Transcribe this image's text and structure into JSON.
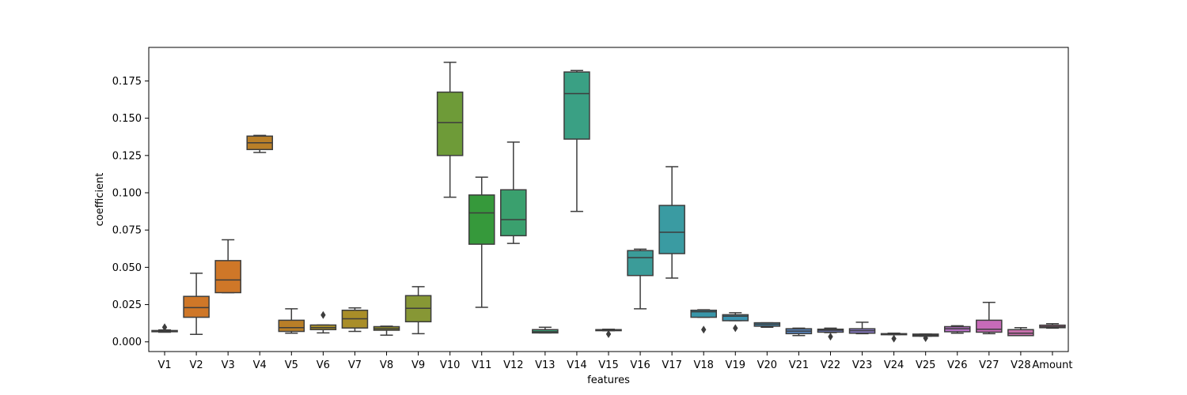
{
  "chart_data": {
    "type": "box",
    "xlabel": "features",
    "ylabel": "coefficient",
    "ylim": [
      -0.0065,
      0.1975
    ],
    "yticks": [
      0.0,
      0.025,
      0.05,
      0.075,
      0.1,
      0.125,
      0.15,
      0.175
    ],
    "ytick_labels": [
      "0.000",
      "0.025",
      "0.050",
      "0.075",
      "0.100",
      "0.125",
      "0.150",
      "0.175"
    ],
    "grid": false,
    "categories": [
      "V1",
      "V2",
      "V3",
      "V4",
      "V5",
      "V6",
      "V7",
      "V8",
      "V9",
      "V10",
      "V11",
      "V12",
      "V13",
      "V14",
      "V15",
      "V16",
      "V17",
      "V18",
      "V19",
      "V20",
      "V21",
      "V22",
      "V23",
      "V24",
      "V25",
      "V26",
      "V27",
      "V28",
      "Amount"
    ],
    "boxes": [
      {
        "whislo": 0.0065,
        "q1": 0.0068,
        "med": 0.0071,
        "q3": 0.0076,
        "whishi": 0.008,
        "fliers": [
          0.0098
        ],
        "color": "#3274a1"
      },
      {
        "whislo": 0.005,
        "q1": 0.0165,
        "med": 0.023,
        "q3": 0.0305,
        "whishi": 0.046,
        "fliers": [],
        "color": "#e1812c"
      },
      {
        "whislo": 0.033,
        "q1": 0.033,
        "med": 0.0415,
        "q3": 0.0545,
        "whishi": 0.0685,
        "fliers": [],
        "color": "#e1812c"
      },
      {
        "whislo": 0.127,
        "q1": 0.129,
        "med": 0.1335,
        "q3": 0.138,
        "whishi": 0.1385,
        "fliers": [],
        "color": "#c98a2c"
      },
      {
        "whislo": 0.0058,
        "q1": 0.007,
        "med": 0.0095,
        "q3": 0.0145,
        "whishi": 0.0222,
        "fliers": [],
        "color": "#c98a2c"
      },
      {
        "whislo": 0.006,
        "q1": 0.0082,
        "med": 0.0095,
        "q3": 0.0113,
        "whishi": 0.0113,
        "fliers": [
          0.018
        ],
        "color": "#b89a2c"
      },
      {
        "whislo": 0.007,
        "q1": 0.0093,
        "med": 0.0155,
        "q3": 0.0212,
        "whishi": 0.0228,
        "fliers": [],
        "color": "#b89a2c"
      },
      {
        "whislo": 0.0045,
        "q1": 0.0078,
        "med": 0.0088,
        "q3": 0.0102,
        "whishi": 0.0105,
        "fliers": [],
        "color": "#a4a02c"
      },
      {
        "whislo": 0.0055,
        "q1": 0.0135,
        "med": 0.0225,
        "q3": 0.031,
        "whishi": 0.037,
        "fliers": [],
        "color": "#93a43a"
      },
      {
        "whislo": 0.097,
        "q1": 0.125,
        "med": 0.147,
        "q3": 0.1675,
        "whishi": 0.1875,
        "fliers": [],
        "color": "#78a83d"
      },
      {
        "whislo": 0.0232,
        "q1": 0.0655,
        "med": 0.0865,
        "q3": 0.0985,
        "whishi": 0.1105,
        "fliers": [],
        "color": "#3ba640"
      },
      {
        "whislo": 0.066,
        "q1": 0.0712,
        "med": 0.082,
        "q3": 0.102,
        "whishi": 0.134,
        "fliers": [],
        "color": "#3fae78"
      },
      {
        "whislo": 0.006,
        "q1": 0.006,
        "med": 0.0068,
        "q3": 0.0082,
        "whishi": 0.0098,
        "fliers": [],
        "color": "#3fae80"
      },
      {
        "whislo": 0.0875,
        "q1": 0.136,
        "med": 0.1665,
        "q3": 0.181,
        "whishi": 0.182,
        "fliers": [],
        "color": "#3fae8f"
      },
      {
        "whislo": 0.0075,
        "q1": 0.0075,
        "med": 0.0078,
        "q3": 0.0082,
        "whishi": 0.0085,
        "fliers": [
          0.0052
        ],
        "color": "#3fae9a"
      },
      {
        "whislo": 0.0222,
        "q1": 0.0445,
        "med": 0.0565,
        "q3": 0.0612,
        "whishi": 0.0622,
        "fliers": [],
        "color": "#40aaa6"
      },
      {
        "whislo": 0.0428,
        "q1": 0.0592,
        "med": 0.0735,
        "q3": 0.0915,
        "whishi": 0.1175,
        "fliers": [],
        "color": "#3fa9b0"
      },
      {
        "whislo": 0.0165,
        "q1": 0.0165,
        "med": 0.0202,
        "q3": 0.0212,
        "whishi": 0.0215,
        "fliers": [
          0.0082
        ],
        "color": "#3ea3b8"
      },
      {
        "whislo": 0.0142,
        "q1": 0.0142,
        "med": 0.0172,
        "q3": 0.0182,
        "whishi": 0.0195,
        "fliers": [
          0.0092
        ],
        "color": "#3f9fbe"
      },
      {
        "whislo": 0.0098,
        "q1": 0.0105,
        "med": 0.0118,
        "q3": 0.0128,
        "whishi": 0.0128,
        "fliers": [],
        "color": "#4a9bc8"
      },
      {
        "whislo": 0.0042,
        "q1": 0.0055,
        "med": 0.0072,
        "q3": 0.0088,
        "whishi": 0.0092,
        "fliers": [],
        "color": "#5f8fce"
      },
      {
        "whislo": 0.0062,
        "q1": 0.0065,
        "med": 0.0078,
        "q3": 0.0085,
        "whishi": 0.0092,
        "fliers": [
          0.0035
        ],
        "color": "#7f8ad6"
      },
      {
        "whislo": 0.0055,
        "q1": 0.0058,
        "med": 0.0075,
        "q3": 0.0088,
        "whishi": 0.0132,
        "fliers": [],
        "color": "#9585d8"
      },
      {
        "whislo": 0.0048,
        "q1": 0.0048,
        "med": 0.0052,
        "q3": 0.0055,
        "whishi": 0.0058,
        "fliers": [
          0.0022
        ],
        "color": "#a67fd8"
      },
      {
        "whislo": 0.0038,
        "q1": 0.0038,
        "med": 0.0045,
        "q3": 0.0052,
        "whishi": 0.0052,
        "fliers": [
          0.0025
        ],
        "color": "#b67ed8"
      },
      {
        "whislo": 0.0058,
        "q1": 0.0068,
        "med": 0.0088,
        "q3": 0.0102,
        "whishi": 0.0108,
        "fliers": [],
        "color": "#c67ad6"
      },
      {
        "whislo": 0.0055,
        "q1": 0.0065,
        "med": 0.0085,
        "q3": 0.0145,
        "whishi": 0.0265,
        "fliers": [],
        "color": "#d874c8"
      },
      {
        "whislo": 0.0042,
        "q1": 0.0042,
        "med": 0.0058,
        "q3": 0.0082,
        "whishi": 0.0095,
        "fliers": [],
        "color": "#d87aba"
      },
      {
        "whislo": 0.0092,
        "q1": 0.0095,
        "med": 0.0102,
        "q3": 0.0112,
        "whishi": 0.0122,
        "fliers": [],
        "color": "#d87aa8"
      }
    ]
  }
}
